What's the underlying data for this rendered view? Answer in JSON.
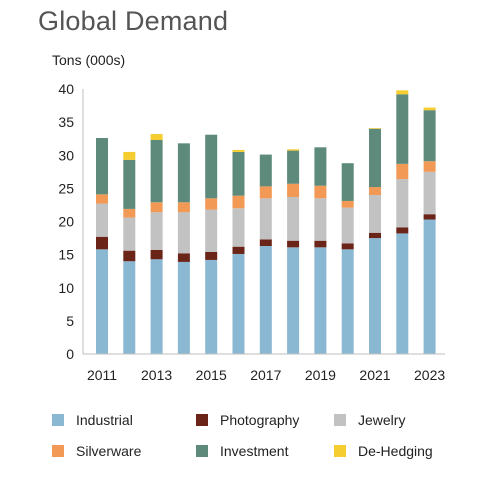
{
  "title": "Global Demand",
  "units_label": "Tons (000s)",
  "chart_data": {
    "type": "bar",
    "stacked": true,
    "title": "Global Demand",
    "ylabel": "Tons (000s)",
    "xlabel": "",
    "ylim": [
      0,
      40
    ],
    "yticks": [
      0,
      5,
      10,
      15,
      20,
      25,
      30,
      35,
      40
    ],
    "categories": [
      "2011",
      "2012",
      "2013",
      "2014",
      "2015",
      "2016",
      "2017",
      "2018",
      "2019",
      "2020",
      "2021",
      "2022",
      "2023"
    ],
    "xtick_labels": [
      "2011",
      "2013",
      "2015",
      "2017",
      "2019",
      "2021",
      "2023"
    ],
    "grid": false,
    "legend_position": "bottom",
    "series": [
      {
        "name": "Industrial",
        "color": "#8ab8d2",
        "values": [
          15.8,
          14.0,
          14.3,
          13.9,
          14.2,
          15.1,
          16.3,
          16.1,
          16.1,
          15.8,
          17.5,
          18.2,
          20.3
        ]
      },
      {
        "name": "Photography",
        "color": "#6b2418",
        "values": [
          1.9,
          1.6,
          1.4,
          1.3,
          1.2,
          1.1,
          1.0,
          1.0,
          1.0,
          0.9,
          0.8,
          0.9,
          0.8
        ]
      },
      {
        "name": "Jewelry",
        "color": "#c2c2c2",
        "values": [
          5.0,
          5.0,
          5.7,
          6.2,
          6.4,
          5.8,
          6.2,
          6.6,
          6.4,
          5.4,
          5.7,
          7.3,
          6.4
        ]
      },
      {
        "name": "Silverware",
        "color": "#f29a55",
        "values": [
          1.4,
          1.3,
          1.5,
          1.5,
          1.7,
          1.9,
          1.8,
          2.0,
          1.9,
          1.0,
          1.2,
          2.3,
          1.6
        ]
      },
      {
        "name": "Investment",
        "color": "#5d8a7a",
        "values": [
          8.5,
          7.4,
          9.4,
          8.9,
          9.6,
          6.6,
          4.8,
          5.0,
          5.8,
          5.7,
          8.8,
          10.5,
          7.7
        ]
      },
      {
        "name": "De-Hedging",
        "color": "#f5cd2e",
        "values": [
          0.0,
          1.2,
          0.9,
          0.0,
          0.0,
          0.3,
          0.0,
          0.2,
          0.0,
          0.0,
          0.1,
          0.6,
          0.4
        ]
      }
    ]
  }
}
